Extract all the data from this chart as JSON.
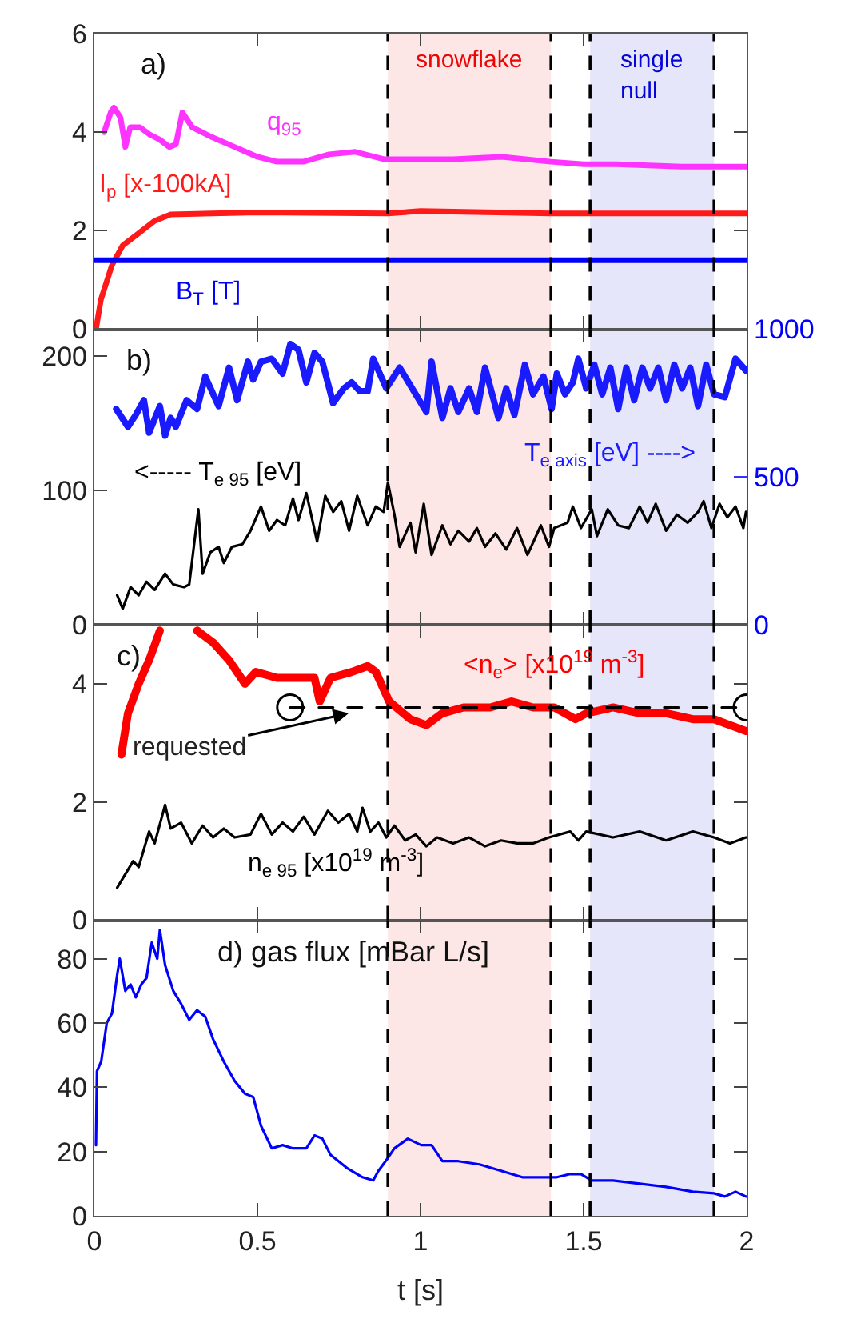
{
  "chart_data": [
    {
      "type": "line",
      "title": "a)",
      "xlim": [
        0,
        2
      ],
      "xticks": [
        0,
        0.5,
        1,
        1.5,
        2
      ],
      "ylim": [
        0,
        6
      ],
      "yticks": [
        0,
        2,
        4,
        6
      ],
      "tick_labels": "y",
      "series": [
        {
          "name": "q$_{95}$",
          "color": "#ff33ff",
          "x": [
            0.03,
            0.05,
            0.06,
            0.08,
            0.095,
            0.11,
            0.14,
            0.17,
            0.2,
            0.23,
            0.25,
            0.27,
            0.3,
            0.36,
            0.43,
            0.5,
            0.56,
            0.64,
            0.72,
            0.8,
            0.89,
            1.0,
            1.1,
            1.25,
            1.4,
            1.5,
            1.6,
            1.8,
            2.0
          ],
          "values": [
            4.0,
            4.4,
            4.5,
            4.3,
            3.7,
            4.1,
            4.1,
            3.95,
            3.85,
            3.7,
            3.75,
            4.4,
            4.1,
            3.9,
            3.7,
            3.5,
            3.4,
            3.4,
            3.55,
            3.6,
            3.45,
            3.45,
            3.45,
            3.5,
            3.4,
            3.35,
            3.35,
            3.3,
            3.3
          ]
        },
        {
          "name": "I$_{p}$ [x-100kA]",
          "color": "#ff1a1a",
          "x": [
            0.005,
            0.02,
            0.054,
            0.087,
            0.136,
            0.185,
            0.234,
            0.5,
            0.9,
            1.0,
            1.4,
            2.0
          ],
          "values": [
            0,
            0.6,
            1.3,
            1.7,
            1.95,
            2.2,
            2.33,
            2.37,
            2.35,
            2.4,
            2.35,
            2.35
          ]
        },
        {
          "name": "B$_{T}$ [T]",
          "color": "#0000ff",
          "x": [
            0,
            2
          ],
          "values": [
            1.4,
            1.4
          ]
        }
      ],
      "bands": [
        {
          "axis": "x",
          "from": 0.9,
          "to": 1.4,
          "label": "snowflake",
          "color": "#fde6e6"
        },
        {
          "axis": "x",
          "from": 1.52,
          "to": 1.9,
          "label": "single null",
          "color": "#e6e6fb"
        }
      ],
      "ref_lines": [
        {
          "axis": "x",
          "value": 0.9,
          "color": "#000000",
          "line_style": "dashed"
        },
        {
          "axis": "x",
          "value": 1.4,
          "color": "#000000",
          "line_style": "dashed"
        },
        {
          "axis": "x",
          "value": 1.52,
          "color": "#000000",
          "line_style": "dashed"
        },
        {
          "axis": "x",
          "value": 1.9,
          "color": "#000000",
          "line_style": "dashed"
        }
      ]
    },
    {
      "type": "line",
      "title": "b)",
      "xlim": [
        0,
        2
      ],
      "xticks": [
        0,
        0.5,
        1,
        1.5,
        2
      ],
      "ylim": [
        0,
        220
      ],
      "yticks": [
        0,
        100,
        200
      ],
      "y2lim": [
        0,
        1000
      ],
      "y2ticks": [
        0,
        500,
        1000
      ],
      "tick_labels": "y",
      "series": [
        {
          "name": "T$_{e axis}$ [eV] ---->",
          "color": "#1a1aff",
          "axis": "y2",
          "x": [
            0.067,
            0.103,
            0.127,
            0.152,
            0.168,
            0.201,
            0.217,
            0.234,
            0.25,
            0.283,
            0.315,
            0.34,
            0.381,
            0.413,
            0.438,
            0.471,
            0.487,
            0.511,
            0.544,
            0.577,
            0.601,
            0.626,
            0.65,
            0.675,
            0.699,
            0.732,
            0.765,
            0.789,
            0.814,
            0.838,
            0.855,
            0.895,
            0.936,
            1.018,
            1.034,
            1.067,
            1.092,
            1.116,
            1.149,
            1.173,
            1.198,
            1.239,
            1.263,
            1.288,
            1.32,
            1.345,
            1.377,
            1.402,
            1.418,
            1.443,
            1.467,
            1.484,
            1.508,
            1.533,
            1.557,
            1.582,
            1.606,
            1.631,
            1.655,
            1.68,
            1.704,
            1.729,
            1.753,
            1.778,
            1.802,
            1.827,
            1.851,
            1.876,
            1.9,
            1.933,
            1.966,
            1.998
          ],
          "values": [
            730,
            670,
            710,
            760,
            650,
            740,
            640,
            700,
            670,
            760,
            730,
            840,
            740,
            870,
            760,
            890,
            830,
            890,
            900,
            850,
            950,
            930,
            820,
            920,
            890,
            750,
            800,
            820,
            790,
            790,
            900,
            800,
            870,
            720,
            890,
            700,
            800,
            720,
            800,
            720,
            870,
            700,
            800,
            710,
            880,
            780,
            840,
            730,
            850,
            780,
            820,
            900,
            800,
            880,
            780,
            870,
            730,
            870,
            760,
            870,
            800,
            870,
            760,
            880,
            800,
            870,
            740,
            880,
            780,
            770,
            900,
            860
          ]
        },
        {
          "name": "<----- T$_{e 95}$ [eV]",
          "color": "#000000",
          "x": [
            0.07,
            0.087,
            0.111,
            0.136,
            0.16,
            0.185,
            0.217,
            0.242,
            0.275,
            0.291,
            0.319,
            0.332,
            0.356,
            0.381,
            0.397,
            0.422,
            0.454,
            0.479,
            0.511,
            0.536,
            0.56,
            0.585,
            0.609,
            0.626,
            0.65,
            0.683,
            0.708,
            0.732,
            0.757,
            0.781,
            0.806,
            0.838,
            0.863,
            0.887,
            0.9,
            0.92,
            0.936,
            0.969,
            0.985,
            1.01,
            1.034,
            1.067,
            1.092,
            1.116,
            1.149,
            1.173,
            1.198,
            1.23,
            1.263,
            1.296,
            1.328,
            1.369,
            1.394,
            1.41,
            1.451,
            1.467,
            1.492,
            1.525,
            1.541,
            1.574,
            1.606,
            1.639,
            1.672,
            1.696,
            1.721,
            1.753,
            1.786,
            1.819,
            1.851,
            1.868,
            1.892,
            1.917,
            1.941,
            1.966,
            1.99,
            1.998
          ],
          "values": [
            22,
            12,
            28,
            22,
            32,
            26,
            38,
            30,
            28,
            30,
            86,
            38,
            54,
            58,
            46,
            58,
            60,
            70,
            88,
            70,
            78,
            74,
            94,
            78,
            98,
            62,
            96,
            84,
            92,
            70,
            96,
            74,
            88,
            84,
            106,
            82,
            58,
            76,
            54,
            90,
            52,
            74,
            60,
            70,
            62,
            72,
            58,
            68,
            56,
            72,
            52,
            74,
            58,
            72,
            76,
            88,
            72,
            86,
            66,
            86,
            74,
            72,
            88,
            76,
            90,
            70,
            82,
            76,
            84,
            92,
            72,
            90,
            80,
            88,
            72,
            84
          ]
        }
      ],
      "bands": [
        {
          "axis": "x",
          "from": 0.9,
          "to": 1.4,
          "color": "#fde6e6"
        },
        {
          "axis": "x",
          "from": 1.52,
          "to": 1.9,
          "color": "#e6e6fb"
        }
      ],
      "ref_lines": [
        {
          "axis": "x",
          "value": 0.9,
          "color": "#000000",
          "line_style": "dashed"
        },
        {
          "axis": "x",
          "value": 1.4,
          "color": "#000000",
          "line_style": "dashed"
        },
        {
          "axis": "x",
          "value": 1.52,
          "color": "#000000",
          "line_style": "dashed"
        },
        {
          "axis": "x",
          "value": 1.9,
          "color": "#000000",
          "line_style": "dashed"
        }
      ]
    },
    {
      "type": "line",
      "title": "c)",
      "annotations": [
        {
          "text": "requested",
          "x": 0.78,
          "y": 3.5
        }
      ],
      "xlim": [
        0,
        2
      ],
      "xticks": [
        0,
        0.5,
        1,
        1.5,
        2
      ],
      "ylim": [
        0,
        5
      ],
      "yticks": [
        0,
        2,
        4
      ],
      "tick_labels": "y",
      "series": [
        {
          "name": "<n$_{e}$> [x10$^{19}$ m$^{-3}$]",
          "color": "#ff0000",
          "x": [
            0.083,
            0.103,
            0.136,
            0.168,
            0.201,
            0.234,
            0.266,
            0.315,
            0.364,
            0.413,
            0.462,
            0.495,
            0.56,
            0.626,
            0.675,
            0.691,
            0.724,
            0.789,
            0.838,
            0.863,
            0.904,
            0.969,
            1.018,
            1.067,
            1.132,
            1.214,
            1.279,
            1.345,
            1.41,
            1.475,
            1.508,
            1.59,
            1.672,
            1.753,
            1.835,
            1.9,
            1.949,
            1.998
          ],
          "values": [
            2.8,
            3.5,
            4.0,
            4.4,
            4.9,
            null,
            null,
            4.9,
            4.7,
            4.4,
            4.0,
            4.2,
            4.1,
            4.1,
            4.1,
            3.7,
            4.1,
            4.2,
            4.3,
            4.2,
            3.7,
            3.4,
            3.3,
            3.5,
            3.6,
            3.6,
            3.7,
            3.6,
            3.6,
            3.4,
            3.5,
            3.6,
            3.5,
            3.5,
            3.4,
            3.4,
            3.3,
            3.2
          ]
        },
        {
          "name": "n$_{e 95}$ [x10$^{19}$ m$^{-3}$]",
          "color": "#000000",
          "x": [
            0.07,
            0.119,
            0.136,
            0.168,
            0.185,
            0.217,
            0.234,
            0.266,
            0.299,
            0.332,
            0.364,
            0.397,
            0.43,
            0.479,
            0.511,
            0.544,
            0.577,
            0.609,
            0.642,
            0.675,
            0.716,
            0.748,
            0.781,
            0.806,
            0.822,
            0.846,
            0.871,
            0.895,
            0.92,
            0.953,
            0.985,
            1.018,
            1.051,
            1.1,
            1.149,
            1.198,
            1.247,
            1.296,
            1.345,
            1.394,
            1.459,
            1.484,
            1.508,
            1.59,
            1.672,
            1.753,
            1.835,
            1.9,
            1.949,
            1.998
          ],
          "values": [
            0.55,
            1.0,
            0.9,
            1.5,
            1.3,
            1.95,
            1.55,
            1.65,
            1.3,
            1.6,
            1.4,
            1.55,
            1.4,
            1.45,
            1.8,
            1.45,
            1.65,
            1.5,
            1.75,
            1.45,
            1.85,
            1.65,
            1.8,
            1.5,
            1.9,
            1.5,
            1.65,
            1.4,
            1.6,
            1.35,
            1.45,
            1.25,
            1.4,
            1.3,
            1.4,
            1.25,
            1.35,
            1.3,
            1.3,
            1.4,
            1.5,
            1.35,
            1.5,
            1.4,
            1.5,
            1.35,
            1.5,
            1.4,
            1.3,
            1.4
          ]
        },
        {
          "color": "#000000",
          "line_style": "dashed",
          "marker": "circle",
          "x": [
            0.6,
            2.0
          ],
          "values": [
            3.6,
            3.6
          ]
        }
      ],
      "bands": [
        {
          "axis": "x",
          "from": 0.9,
          "to": 1.4,
          "color": "#fde6e6"
        },
        {
          "axis": "x",
          "from": 1.52,
          "to": 1.9,
          "color": "#e6e6fb"
        }
      ],
      "ref_lines": [
        {
          "axis": "x",
          "value": 0.9,
          "color": "#000000",
          "line_style": "dashed"
        },
        {
          "axis": "x",
          "value": 1.4,
          "color": "#000000",
          "line_style": "dashed"
        },
        {
          "axis": "x",
          "value": 1.52,
          "color": "#000000",
          "line_style": "dashed"
        },
        {
          "axis": "x",
          "value": 1.9,
          "color": "#000000",
          "line_style": "dashed"
        }
      ]
    },
    {
      "type": "line",
      "title": "d) gas flux [mBar L/s]",
      "xlabel": "t [s]",
      "xlim": [
        0,
        2
      ],
      "xticks": [
        0,
        0.5,
        1,
        1.5,
        2
      ],
      "ylim": [
        0,
        92
      ],
      "yticks": [
        0,
        20,
        40,
        60,
        80
      ],
      "series": [
        {
          "color": "#0000ff",
          "x": [
            0.005,
            0.008,
            0.021,
            0.038,
            0.054,
            0.07,
            0.078,
            0.095,
            0.111,
            0.127,
            0.144,
            0.16,
            0.176,
            0.193,
            0.201,
            0.217,
            0.242,
            0.266,
            0.291,
            0.315,
            0.34,
            0.364,
            0.397,
            0.43,
            0.462,
            0.487,
            0.511,
            0.544,
            0.577,
            0.609,
            0.65,
            0.675,
            0.699,
            0.724,
            0.773,
            0.822,
            0.855,
            0.871,
            0.9,
            0.92,
            0.961,
            1.002,
            1.034,
            1.067,
            1.116,
            1.181,
            1.247,
            1.312,
            1.394,
            1.418,
            1.459,
            1.492,
            1.525,
            1.59,
            1.672,
            1.753,
            1.835,
            1.9,
            1.933,
            1.966,
            1.998
          ],
          "values": [
            22,
            45,
            48,
            60,
            63,
            75,
            80,
            70,
            72,
            68,
            72,
            74,
            85,
            80,
            89,
            78,
            70,
            66,
            61,
            64,
            62,
            55,
            48,
            42,
            38,
            37,
            28,
            21,
            22,
            21,
            21,
            25,
            24,
            19,
            15,
            12,
            11,
            14,
            18,
            21,
            24,
            22,
            22,
            17,
            17,
            16,
            14,
            12,
            12,
            12,
            13,
            13,
            11,
            11,
            10,
            9,
            7.5,
            7,
            6,
            7.5,
            6
          ]
        }
      ],
      "bands": [
        {
          "axis": "x",
          "from": 0.9,
          "to": 1.4,
          "color": "#fde6e6"
        },
        {
          "axis": "x",
          "from": 1.52,
          "to": 1.9,
          "color": "#e6e6fb"
        }
      ],
      "ref_lines": [
        {
          "axis": "x",
          "value": 0.9,
          "color": "#000000",
          "line_style": "dashed"
        },
        {
          "axis": "x",
          "value": 1.4,
          "color": "#000000",
          "line_style": "dashed"
        },
        {
          "axis": "x",
          "value": 1.52,
          "color": "#000000",
          "line_style": "dashed"
        },
        {
          "axis": "x",
          "value": 1.9,
          "color": "#000000",
          "line_style": "dashed"
        }
      ]
    }
  ]
}
